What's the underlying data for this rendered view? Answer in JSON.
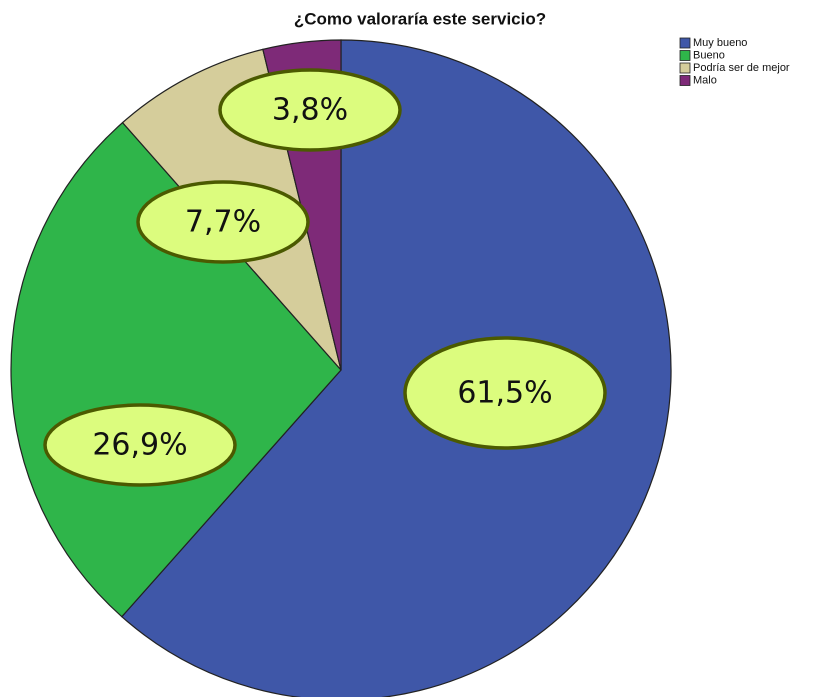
{
  "chart_data": {
    "type": "pie",
    "title": "¿Como valoraría este servicio?",
    "categories": [
      "Muy bueno",
      "Bueno",
      "Podría ser de mejor",
      "Malo"
    ],
    "values": [
      61.5,
      26.9,
      7.7,
      3.8
    ],
    "value_labels": [
      "61,5%",
      "26,9%",
      "7,7%",
      "3,8%"
    ],
    "colors": [
      "#3f57a8",
      "#2fb54a",
      "#d5cd9b",
      "#7e2a78"
    ],
    "legend": "upper right"
  }
}
